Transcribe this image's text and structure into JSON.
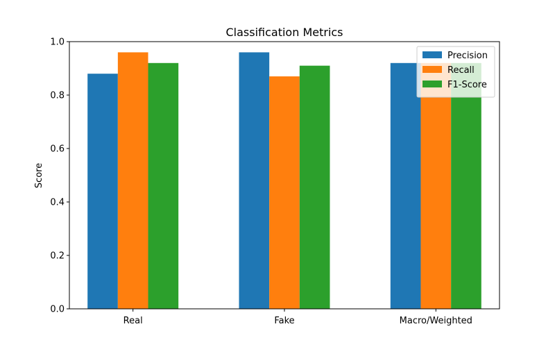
{
  "chart_data": {
    "type": "bar",
    "title": "Classification Metrics",
    "xlabel": "",
    "ylabel": "Score",
    "ylim": [
      0,
      1.0
    ],
    "yticks": [
      "0.0",
      "0.2",
      "0.4",
      "0.6",
      "0.8",
      "1.0"
    ],
    "categories": [
      "Real",
      "Fake",
      "Macro/Weighted"
    ],
    "series": [
      {
        "name": "Precision",
        "color": "#1f77b4",
        "values": [
          0.88,
          0.96,
          0.92
        ]
      },
      {
        "name": "Recall",
        "color": "#ff7f0e",
        "values": [
          0.96,
          0.87,
          0.92
        ]
      },
      {
        "name": "F1-Score",
        "color": "#2ca02c",
        "values": [
          0.92,
          0.91,
          0.92
        ]
      }
    ],
    "legend_position": "top-right",
    "grid": false
  }
}
